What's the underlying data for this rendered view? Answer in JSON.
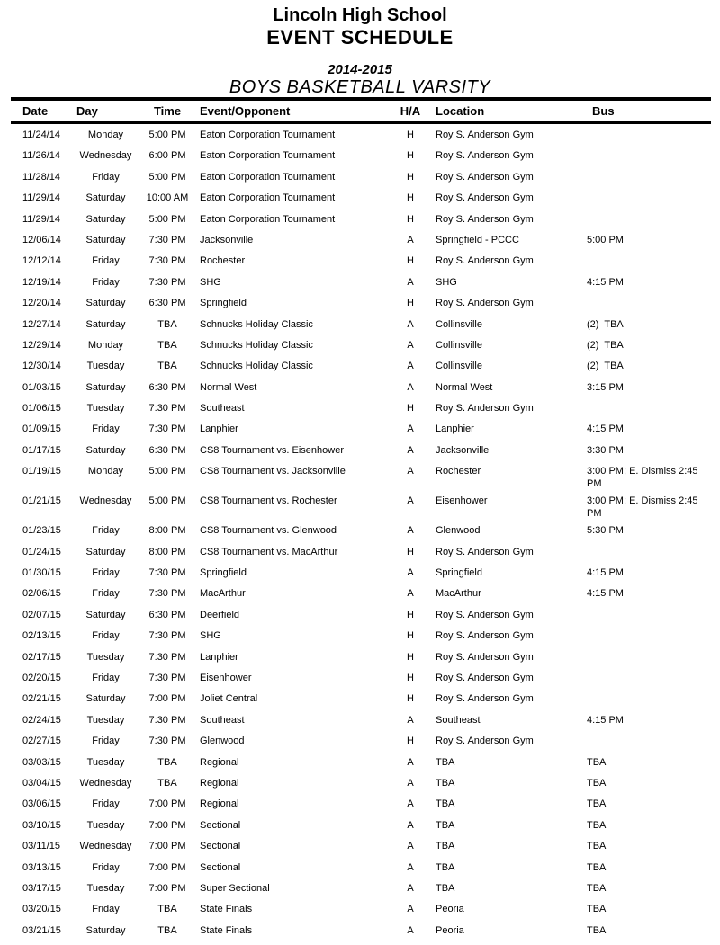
{
  "header": {
    "school": "Lincoln High School",
    "title": "EVENT SCHEDULE",
    "season": "2014-2015",
    "team": "BOYS BASKETBALL VARSITY"
  },
  "table": {
    "columns": [
      "Date",
      "Day",
      "Time",
      "Event/Opponent",
      "H/A",
      "Location",
      "Bus"
    ],
    "rows": [
      [
        "11/24/14",
        "Monday",
        "5:00 PM",
        "Eaton Corporation Tournament",
        "H",
        "Roy S. Anderson Gym",
        ""
      ],
      [
        "11/26/14",
        "Wednesday",
        "6:00 PM",
        "Eaton Corporation Tournament",
        "H",
        "Roy S. Anderson Gym",
        ""
      ],
      [
        "11/28/14",
        "Friday",
        "5:00 PM",
        "Eaton Corporation Tournament",
        "H",
        "Roy S. Anderson Gym",
        ""
      ],
      [
        "11/29/14",
        "Saturday",
        "10:00 AM",
        "Eaton Corporation Tournament",
        "H",
        "Roy S. Anderson Gym",
        ""
      ],
      [
        "11/29/14",
        "Saturday",
        "5:00 PM",
        "Eaton Corporation Tournament",
        "H",
        "Roy S. Anderson Gym",
        ""
      ],
      [
        "12/06/14",
        "Saturday",
        "7:30 PM",
        "Jacksonville",
        "A",
        "Springfield - PCCC",
        "5:00 PM"
      ],
      [
        "12/12/14",
        "Friday",
        "7:30 PM",
        "Rochester",
        "H",
        "Roy S. Anderson Gym",
        ""
      ],
      [
        "12/19/14",
        "Friday",
        "7:30 PM",
        "SHG",
        "A",
        "SHG",
        "4:15 PM"
      ],
      [
        "12/20/14",
        "Saturday",
        "6:30 PM",
        "Springfield",
        "H",
        "Roy S. Anderson Gym",
        ""
      ],
      [
        "12/27/14",
        "Saturday",
        "TBA",
        "Schnucks Holiday Classic",
        "A",
        "Collinsville",
        "(2)  TBA"
      ],
      [
        "12/29/14",
        "Monday",
        "TBA",
        "Schnucks Holiday Classic",
        "A",
        "Collinsville",
        "(2)  TBA"
      ],
      [
        "12/30/14",
        "Tuesday",
        "TBA",
        "Schnucks Holiday Classic",
        "A",
        "Collinsville",
        "(2)  TBA"
      ],
      [
        "01/03/15",
        "Saturday",
        "6:30 PM",
        "Normal West",
        "A",
        "Normal West",
        "3:15 PM"
      ],
      [
        "01/06/15",
        "Tuesday",
        "7:30 PM",
        "Southeast",
        "H",
        "Roy S. Anderson Gym",
        ""
      ],
      [
        "01/09/15",
        "Friday",
        "7:30 PM",
        "Lanphier",
        "A",
        "Lanphier",
        "4:15 PM"
      ],
      [
        "01/17/15",
        "Saturday",
        "6:30 PM",
        "CS8 Tournament vs. Eisenhower",
        "A",
        "Jacksonville",
        "3:30 PM"
      ],
      [
        "01/19/15",
        "Monday",
        "5:00 PM",
        "CS8 Tournament vs. Jacksonville",
        "A",
        "Rochester",
        "3:00 PM; E. Dismiss 2:45 PM"
      ],
      [
        "01/21/15",
        "Wednesday",
        "5:00 PM",
        "CS8 Tournament vs. Rochester",
        "A",
        "Eisenhower",
        "3:00 PM; E. Dismiss 2:45 PM"
      ],
      [
        "01/23/15",
        "Friday",
        "8:00 PM",
        "CS8 Tournament vs. Glenwood",
        "A",
        "Glenwood",
        "5:30 PM"
      ],
      [
        "01/24/15",
        "Saturday",
        "8:00 PM",
        "CS8 Tournament vs. MacArthur",
        "H",
        "Roy S. Anderson Gym",
        ""
      ],
      [
        "01/30/15",
        "Friday",
        "7:30 PM",
        "Springfield",
        "A",
        "Springfield",
        "4:15 PM"
      ],
      [
        "02/06/15",
        "Friday",
        "7:30 PM",
        "MacArthur",
        "A",
        "MacArthur",
        "4:15 PM"
      ],
      [
        "02/07/15",
        "Saturday",
        "6:30 PM",
        "Deerfield",
        "H",
        "Roy S. Anderson Gym",
        ""
      ],
      [
        "02/13/15",
        "Friday",
        "7:30 PM",
        "SHG",
        "H",
        "Roy S. Anderson Gym",
        ""
      ],
      [
        "02/17/15",
        "Tuesday",
        "7:30 PM",
        "Lanphier",
        "H",
        "Roy S. Anderson Gym",
        ""
      ],
      [
        "02/20/15",
        "Friday",
        "7:30 PM",
        "Eisenhower",
        "H",
        "Roy S. Anderson Gym",
        ""
      ],
      [
        "02/21/15",
        "Saturday",
        "7:00 PM",
        "Joliet Central",
        "H",
        "Roy S. Anderson Gym",
        ""
      ],
      [
        "02/24/15",
        "Tuesday",
        "7:30 PM",
        "Southeast",
        "A",
        "Southeast",
        "4:15 PM"
      ],
      [
        "02/27/15",
        "Friday",
        "7:30 PM",
        "Glenwood",
        "H",
        "Roy S. Anderson Gym",
        ""
      ],
      [
        "03/03/15",
        "Tuesday",
        "TBA",
        "Regional",
        "A",
        "TBA",
        "TBA"
      ],
      [
        "03/04/15",
        "Wednesday",
        "TBA",
        "Regional",
        "A",
        "TBA",
        "TBA"
      ],
      [
        "03/06/15",
        "Friday",
        "7:00 PM",
        "Regional",
        "A",
        "TBA",
        "TBA"
      ],
      [
        "03/10/15",
        "Tuesday",
        "7:00 PM",
        "Sectional",
        "A",
        "TBA",
        "TBA"
      ],
      [
        "03/11/15",
        "Wednesday",
        "7:00 PM",
        "Sectional",
        "A",
        "TBA",
        "TBA"
      ],
      [
        "03/13/15",
        "Friday",
        "7:00 PM",
        "Sectional",
        "A",
        "TBA",
        "TBA"
      ],
      [
        "03/17/15",
        "Tuesday",
        "7:00 PM",
        "Super Sectional",
        "A",
        "TBA",
        "TBA"
      ],
      [
        "03/20/15",
        "Friday",
        "TBA",
        "State Finals",
        "A",
        "Peoria",
        "TBA"
      ],
      [
        "03/21/15",
        "Saturday",
        "TBA",
        "State Finals",
        "A",
        "Peoria",
        "TBA"
      ]
    ]
  }
}
